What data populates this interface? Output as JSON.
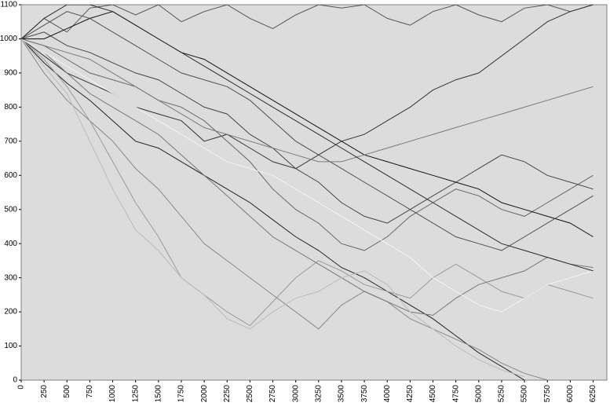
{
  "chart_data": {
    "type": "line",
    "x": [
      0,
      250,
      500,
      750,
      1000,
      1250,
      1500,
      1750,
      2000,
      2250,
      2500,
      2750,
      3000,
      3250,
      3500,
      3750,
      4000,
      4250,
      4500,
      4750,
      5000,
      5250,
      5500,
      5750,
      6000,
      6250
    ],
    "xlim": [
      0,
      6400
    ],
    "xticks": [
      0,
      250,
      500,
      750,
      1000,
      1250,
      1500,
      1750,
      2000,
      2250,
      2500,
      2750,
      3000,
      3250,
      3500,
      3750,
      4000,
      4250,
      4500,
      4750,
      5000,
      5250,
      5500,
      5750,
      6000,
      6250
    ],
    "ylim": [
      0,
      1100
    ],
    "yticks": [
      0,
      100,
      200,
      300,
      400,
      500,
      600,
      700,
      800,
      900,
      1000,
      1100
    ],
    "background": "#dcdcdc",
    "series": [
      {
        "color": "#222222",
        "values": [
          1000,
          930,
          870,
          820,
          760,
          700,
          680,
          640,
          600,
          560,
          520,
          470,
          420,
          380,
          330,
          300,
          260,
          220,
          180,
          130,
          80,
          40,
          0,
          null,
          null,
          null
        ]
      },
      {
        "color": "#555555",
        "values": [
          1000,
          1060,
          1020,
          1090,
          1100,
          1070,
          1100,
          1050,
          1080,
          1100,
          1060,
          1030,
          1070,
          1100,
          1090,
          1100,
          1060,
          1040,
          1080,
          1100,
          1070,
          1050,
          1090,
          1100,
          1080,
          1100
        ]
      },
      {
        "color": "#888888",
        "values": [
          1000,
          900,
          820,
          760,
          700,
          620,
          560,
          480,
          400,
          350,
          300,
          250,
          200,
          150,
          220,
          260,
          230,
          180,
          150,
          120,
          90,
          50,
          20,
          0,
          null,
          null
        ]
      },
      {
        "color": "#333333",
        "values": [
          1000,
          950,
          900,
          870,
          840,
          800,
          780,
          760,
          700,
          720,
          680,
          640,
          620,
          660,
          700,
          720,
          760,
          800,
          850,
          880,
          900,
          950,
          1000,
          1050,
          1080,
          1100
        ]
      },
      {
        "color": "#666666",
        "values": [
          1000,
          980,
          940,
          900,
          880,
          860,
          820,
          800,
          760,
          700,
          640,
          560,
          500,
          460,
          400,
          380,
          420,
          480,
          520,
          560,
          540,
          500,
          480,
          520,
          560,
          600
        ]
      },
      {
        "color": "#444444",
        "values": [
          1000,
          1020,
          980,
          960,
          930,
          900,
          880,
          840,
          800,
          780,
          720,
          680,
          620,
          580,
          520,
          480,
          460,
          500,
          540,
          580,
          620,
          660,
          640,
          600,
          580,
          560
        ]
      },
      {
        "color": "#999999",
        "values": [
          1000,
          940,
          860,
          760,
          640,
          520,
          420,
          300,
          250,
          200,
          160,
          230,
          300,
          350,
          320,
          280,
          260,
          240,
          300,
          340,
          300,
          260,
          240,
          280,
          260,
          240
        ]
      },
      {
        "color": "#777777",
        "values": [
          1000,
          960,
          900,
          840,
          800,
          760,
          720,
          660,
          600,
          540,
          480,
          420,
          380,
          340,
          300,
          260,
          230,
          200,
          190,
          240,
          280,
          300,
          320,
          360,
          340,
          330
        ]
      },
      {
        "color": "#111111",
        "values": [
          1000,
          1000,
          1030,
          1060,
          1080,
          1040,
          1000,
          960,
          940,
          900,
          860,
          820,
          780,
          740,
          700,
          660,
          640,
          620,
          600,
          580,
          560,
          520,
          500,
          480,
          460,
          420
        ]
      },
      {
        "color": "#bbbbbb",
        "values": [
          1000,
          920,
          840,
          700,
          560,
          440,
          380,
          300,
          250,
          180,
          150,
          200,
          240,
          260,
          300,
          320,
          280,
          200,
          150,
          100,
          60,
          30,
          10,
          null,
          null,
          null
        ]
      },
      {
        "color": "#f4f4f4",
        "values": [
          1000,
          960,
          920,
          880,
          840,
          800,
          760,
          720,
          680,
          640,
          620,
          600,
          560,
          520,
          480,
          440,
          400,
          360,
          300,
          260,
          220,
          200,
          240,
          280,
          300,
          320
        ]
      },
      {
        "color": "#505050",
        "values": [
          1000,
          1040,
          1080,
          1060,
          1020,
          980,
          940,
          900,
          880,
          860,
          820,
          760,
          700,
          660,
          620,
          580,
          540,
          500,
          460,
          420,
          400,
          380,
          420,
          460,
          500,
          540
        ]
      },
      {
        "color": "#7a7a7a",
        "values": [
          1000,
          980,
          960,
          940,
          900,
          860,
          820,
          780,
          740,
          720,
          700,
          680,
          660,
          640,
          640,
          660,
          680,
          700,
          720,
          740,
          760,
          780,
          800,
          820,
          840,
          860
        ]
      },
      {
        "color": "#2a2a2a",
        "values": [
          1000,
          1060,
          1100,
          1100,
          1080,
          1040,
          1000,
          960,
          920,
          880,
          840,
          800,
          760,
          720,
          680,
          640,
          600,
          560,
          520,
          480,
          440,
          400,
          380,
          360,
          340,
          320
        ]
      }
    ]
  }
}
